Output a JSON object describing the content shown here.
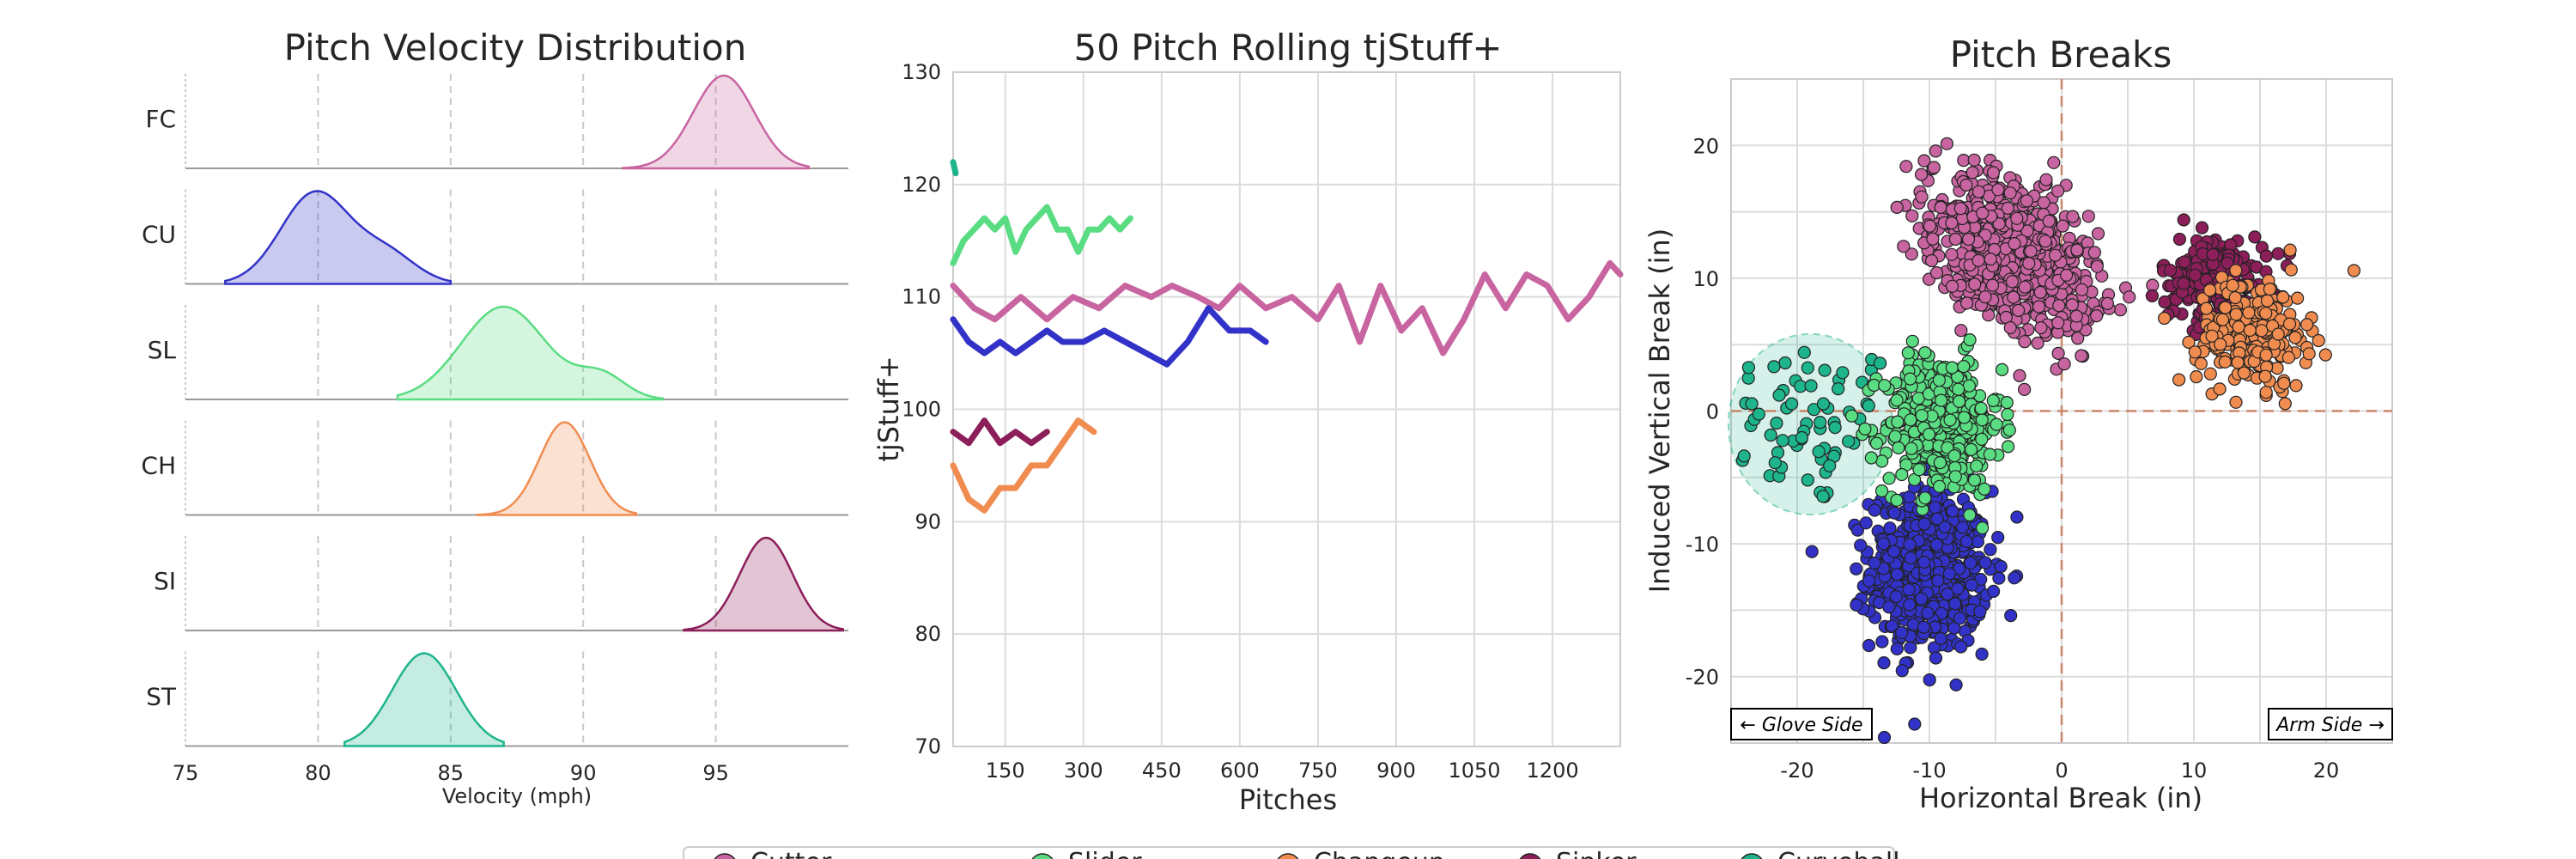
{
  "colors": {
    "FC": "#C864A0",
    "CU": "#3232C8",
    "SL": "#5ADC82",
    "CH": "#F08C50",
    "SI": "#8C1E5A",
    "ST": "#1EB48C"
  },
  "chart_data": [
    {
      "type": "area",
      "title": "Pitch Velocity Distribution",
      "xlabel": "Velocity (mph)",
      "xlim": [
        75,
        100
      ],
      "xticks": [
        "75",
        "80",
        "85",
        "90",
        "95"
      ],
      "grid": "vertical dashed",
      "rows": [
        {
          "label": "FC",
          "range": [
            91.5,
            98.5
          ],
          "peak": 95.3,
          "sd": 1.15
        },
        {
          "label": "CU",
          "range": [
            76.5,
            85.0
          ],
          "peak": 79.9,
          "sd": 1.3
        },
        {
          "label": "SL",
          "range": [
            83.0,
            93.0
          ],
          "peak": 87.0,
          "sd": 1.6
        },
        {
          "label": "CH",
          "range": [
            86.0,
            92.0
          ],
          "peak": 89.3,
          "sd": 0.95
        },
        {
          "label": "SI",
          "range": [
            93.8,
            99.8
          ],
          "peak": 96.9,
          "sd": 1.0
        },
        {
          "label": "ST",
          "range": [
            81.0,
            87.0
          ],
          "peak": 84.0,
          "sd": 1.2
        }
      ]
    },
    {
      "type": "line",
      "title": "50 Pitch Rolling tjStuff+",
      "xlabel": "Pitches",
      "ylabel": "tjStuff+",
      "xlim": [
        50,
        1330
      ],
      "ylim": [
        70,
        130
      ],
      "xticks": [
        "150",
        "300",
        "450",
        "600",
        "750",
        "900",
        "1050",
        "1200"
      ],
      "yticks": [
        "70",
        "80",
        "90",
        "100",
        "110",
        "120",
        "130"
      ],
      "series": [
        {
          "pitch": "FC",
          "x": [
            50,
            90,
            130,
            180,
            230,
            280,
            330,
            380,
            430,
            470,
            520,
            560,
            600,
            650,
            700,
            750,
            790,
            830,
            870,
            910,
            950,
            990,
            1030,
            1070,
            1110,
            1150,
            1190,
            1230,
            1270,
            1310,
            1330
          ],
          "y": [
            111,
            109,
            108,
            110,
            108,
            110,
            109,
            111,
            110,
            111,
            110,
            109,
            111,
            109,
            110,
            108,
            111,
            106,
            111,
            107,
            109,
            105,
            108,
            112,
            109,
            112,
            111,
            108,
            110,
            113,
            112
          ]
        },
        {
          "pitch": "SL",
          "x": [
            50,
            70,
            90,
            110,
            130,
            150,
            170,
            190,
            210,
            230,
            250,
            270,
            290,
            310,
            330,
            350,
            370,
            390
          ],
          "y": [
            113,
            115,
            116,
            117,
            116,
            117,
            114,
            116,
            117,
            118,
            116,
            116,
            114,
            116,
            116,
            117,
            116,
            117
          ]
        },
        {
          "pitch": "CU",
          "x": [
            50,
            80,
            110,
            140,
            170,
            200,
            230,
            260,
            300,
            340,
            380,
            420,
            460,
            500,
            540,
            580,
            620,
            650
          ],
          "y": [
            108,
            106,
            105,
            106,
            105,
            106,
            107,
            106,
            106,
            107,
            106,
            105,
            104,
            106,
            109,
            107,
            107,
            106
          ]
        },
        {
          "pitch": "SI",
          "x": [
            50,
            80,
            110,
            140,
            170,
            200,
            230
          ],
          "y": [
            98,
            97,
            99,
            97,
            98,
            97,
            98
          ]
        },
        {
          "pitch": "CH",
          "x": [
            50,
            80,
            110,
            140,
            170,
            200,
            230,
            260,
            290,
            320
          ],
          "y": [
            95,
            92,
            91,
            93,
            93,
            95,
            95,
            97,
            99,
            98
          ]
        },
        {
          "pitch": "ST",
          "x": [
            50,
            55
          ],
          "y": [
            122,
            121
          ]
        }
      ]
    },
    {
      "type": "scatter",
      "title": "Pitch Breaks",
      "xlabel": "Horizontal Break (in)",
      "ylabel": "Induced Vertical Break (in)",
      "xlim": [
        -25,
        25
      ],
      "ylim": [
        -25,
        25
      ],
      "xticks": [
        "-20",
        "-10",
        "0",
        "10",
        "20"
      ],
      "yticks": [
        "20",
        "10",
        "0",
        "-10",
        "-20"
      ],
      "annotations": {
        "left": "← Glove Side",
        "right": "Arm Side →"
      },
      "clusters": [
        {
          "pitch": "ST",
          "cx": -19,
          "cy": -1,
          "sx": 3.5,
          "sy": 3.2,
          "n": 70,
          "ellipse": {
            "rx": 6.2,
            "ry": 6.8
          }
        },
        {
          "pitch": "CU",
          "cx": -10,
          "cy": -12,
          "sx": 2.2,
          "sy": 3.0,
          "n": 600
        },
        {
          "pitch": "SL",
          "cx": -9,
          "cy": -1,
          "sx": 2.2,
          "sy": 2.6,
          "n": 450
        },
        {
          "pitch": "FC",
          "cx": -4,
          "cy": 12,
          "sx": 2.3,
          "sy": 3.5,
          "n": 800,
          "rot": 0.9
        },
        {
          "pitch": "SI",
          "cx": 11.5,
          "cy": 10,
          "sx": 2.0,
          "sy": 1.6,
          "n": 200
        },
        {
          "pitch": "CH",
          "cx": 14.5,
          "cy": 6,
          "sx": 2.1,
          "sy": 2.1,
          "n": 220
        }
      ]
    }
  ],
  "legend": {
    "items": [
      "Cutter",
      "Slider",
      "Changeup",
      "Sinker",
      "Curveball"
    ]
  }
}
